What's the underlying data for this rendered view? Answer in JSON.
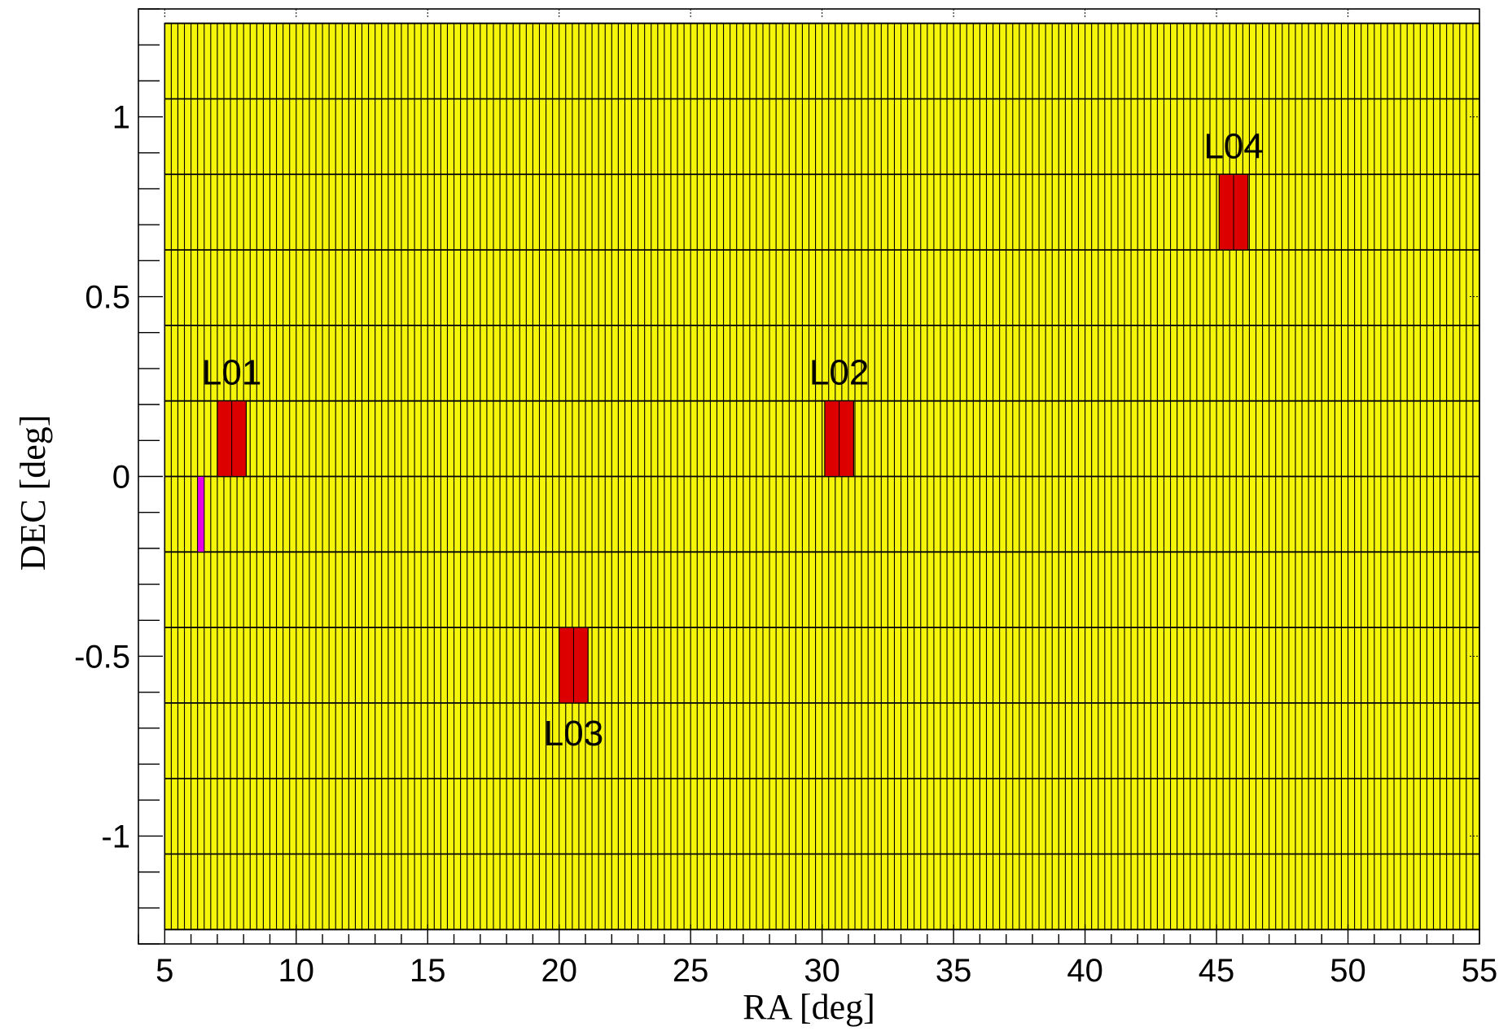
{
  "chart_data": {
    "type": "heatmap",
    "title": "",
    "xlabel": "RA [deg]",
    "ylabel": "DEC [deg]",
    "xlim": [
      4.0,
      55.0
    ],
    "ylim": [
      -1.3,
      1.3
    ],
    "xticks": [
      5,
      10,
      15,
      20,
      25,
      30,
      35,
      40,
      45,
      50,
      55
    ],
    "xtick_labels": [
      "5",
      "10",
      "15",
      "20",
      "25",
      "30",
      "35",
      "40",
      "45",
      "50",
      "55"
    ],
    "yticks": [
      -1,
      -0.5,
      0,
      0.5,
      1
    ],
    "ytick_labels": [
      "-1",
      "-0.5",
      "0",
      "0.5",
      "1"
    ],
    "grid": false,
    "tile_grid": {
      "ra_range": [
        5.0,
        55.0
      ],
      "dec_range": [
        -1.26,
        1.26
      ],
      "tile_width_deg": 0.25,
      "row_edges_dec": [
        -1.26,
        -1.05,
        -0.84,
        -0.63,
        -0.42,
        -0.21,
        0.0,
        0.21,
        0.42,
        0.63,
        0.84,
        1.05,
        1.26
      ],
      "fill_color": "#f5f50a",
      "edge_color": "#000000"
    },
    "highlighted_regions": [
      {
        "label": "L01",
        "ra": [
          7.0,
          8.1
        ],
        "dec": [
          0.0,
          0.21
        ],
        "color": "#dd0000"
      },
      {
        "label": "L02",
        "ra": [
          30.1,
          31.2
        ],
        "dec": [
          0.0,
          0.21
        ],
        "color": "#dd0000"
      },
      {
        "label": "L03",
        "ra": [
          20.0,
          21.1
        ],
        "dec": [
          -0.63,
          -0.42
        ],
        "color": "#dd0000"
      },
      {
        "label": "L04",
        "ra": [
          45.1,
          46.2
        ],
        "dec": [
          0.63,
          0.84
        ],
        "color": "#dd0000"
      }
    ],
    "marker_region": {
      "ra": [
        6.25,
        6.5
      ],
      "dec": [
        -0.21,
        0.0
      ],
      "color": "#e600e6"
    }
  }
}
